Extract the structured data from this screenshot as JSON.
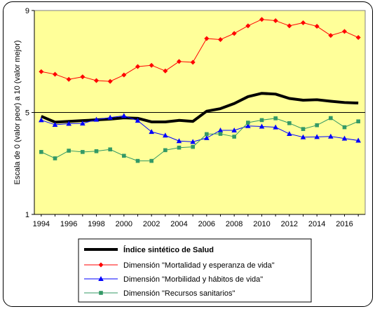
{
  "chart_data": {
    "type": "line",
    "ylabel": "Escala de 0 (valor  peor)  a 10 (valor  mejor)",
    "ylim": [
      1,
      9
    ],
    "yticks": [
      1,
      5,
      9
    ],
    "xlim": [
      1993.5,
      2017.5
    ],
    "xticks": [
      1994,
      1996,
      1998,
      2000,
      2002,
      2004,
      2006,
      2008,
      2010,
      2012,
      2014,
      2016
    ],
    "reference_line": 5,
    "plot_background": "#ffff99",
    "legend_position": "bottom",
    "x": [
      1994,
      1995,
      1996,
      1997,
      1998,
      1999,
      2000,
      2001,
      2002,
      2003,
      2004,
      2005,
      2006,
      2007,
      2008,
      2009,
      2010,
      2011,
      2012,
      2013,
      2014,
      2015,
      2016,
      2017
    ],
    "series": [
      {
        "name": "Índice sintético de Salud",
        "color": "#000000",
        "bold": true,
        "marker": "none",
        "values": [
          4.85,
          4.62,
          4.65,
          4.68,
          4.71,
          4.74,
          4.79,
          4.77,
          4.63,
          4.63,
          4.69,
          4.65,
          5.05,
          5.15,
          5.35,
          5.62,
          5.75,
          5.72,
          5.55,
          5.48,
          5.5,
          5.44,
          5.39,
          5.37
        ]
      },
      {
        "name": "Dimensión \"Mortalidad y esperanza de vida\"",
        "color": "#ff0000",
        "marker": "diamond",
        "values": [
          6.6,
          6.5,
          6.3,
          6.4,
          6.25,
          6.22,
          6.47,
          6.8,
          6.85,
          6.63,
          7.0,
          6.97,
          7.9,
          7.86,
          8.1,
          8.4,
          8.65,
          8.6,
          8.4,
          8.52,
          8.38,
          8.02,
          8.18,
          7.94
        ]
      },
      {
        "name": "Dimensión \"Morbilidad y hábitos de vida\"",
        "color": "#0000ff",
        "marker": "triangle",
        "values": [
          4.7,
          4.52,
          4.56,
          4.57,
          4.72,
          4.8,
          4.87,
          4.68,
          4.24,
          4.1,
          3.88,
          3.85,
          4.0,
          4.3,
          4.3,
          4.47,
          4.45,
          4.42,
          4.16,
          4.03,
          4.04,
          4.06,
          3.98,
          3.9
        ]
      },
      {
        "name": "Dimensión \"Recursos sanitarios\"",
        "color": "#339966",
        "marker": "square",
        "values": [
          3.45,
          3.2,
          3.5,
          3.45,
          3.48,
          3.55,
          3.3,
          3.1,
          3.1,
          3.52,
          3.62,
          3.65,
          4.15,
          4.16,
          4.05,
          4.6,
          4.7,
          4.77,
          4.58,
          4.35,
          4.5,
          4.78,
          4.42,
          4.65
        ]
      }
    ]
  }
}
